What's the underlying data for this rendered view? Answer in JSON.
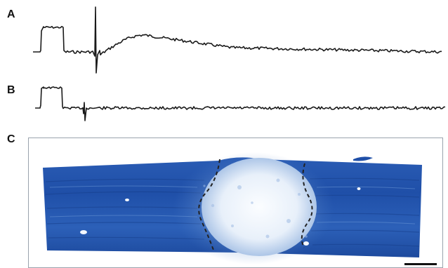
{
  "panels": {
    "a": {
      "label": "A"
    },
    "b": {
      "label": "B"
    },
    "c": {
      "label": "C"
    }
  },
  "colors": {
    "trace": "#1a1a1a",
    "stain_dark": "#1f4fa8",
    "stain_mid": "#3f76c4",
    "lesion": "#eef3fa",
    "border_dashed": "#222222",
    "background": "#ffffff"
  }
}
